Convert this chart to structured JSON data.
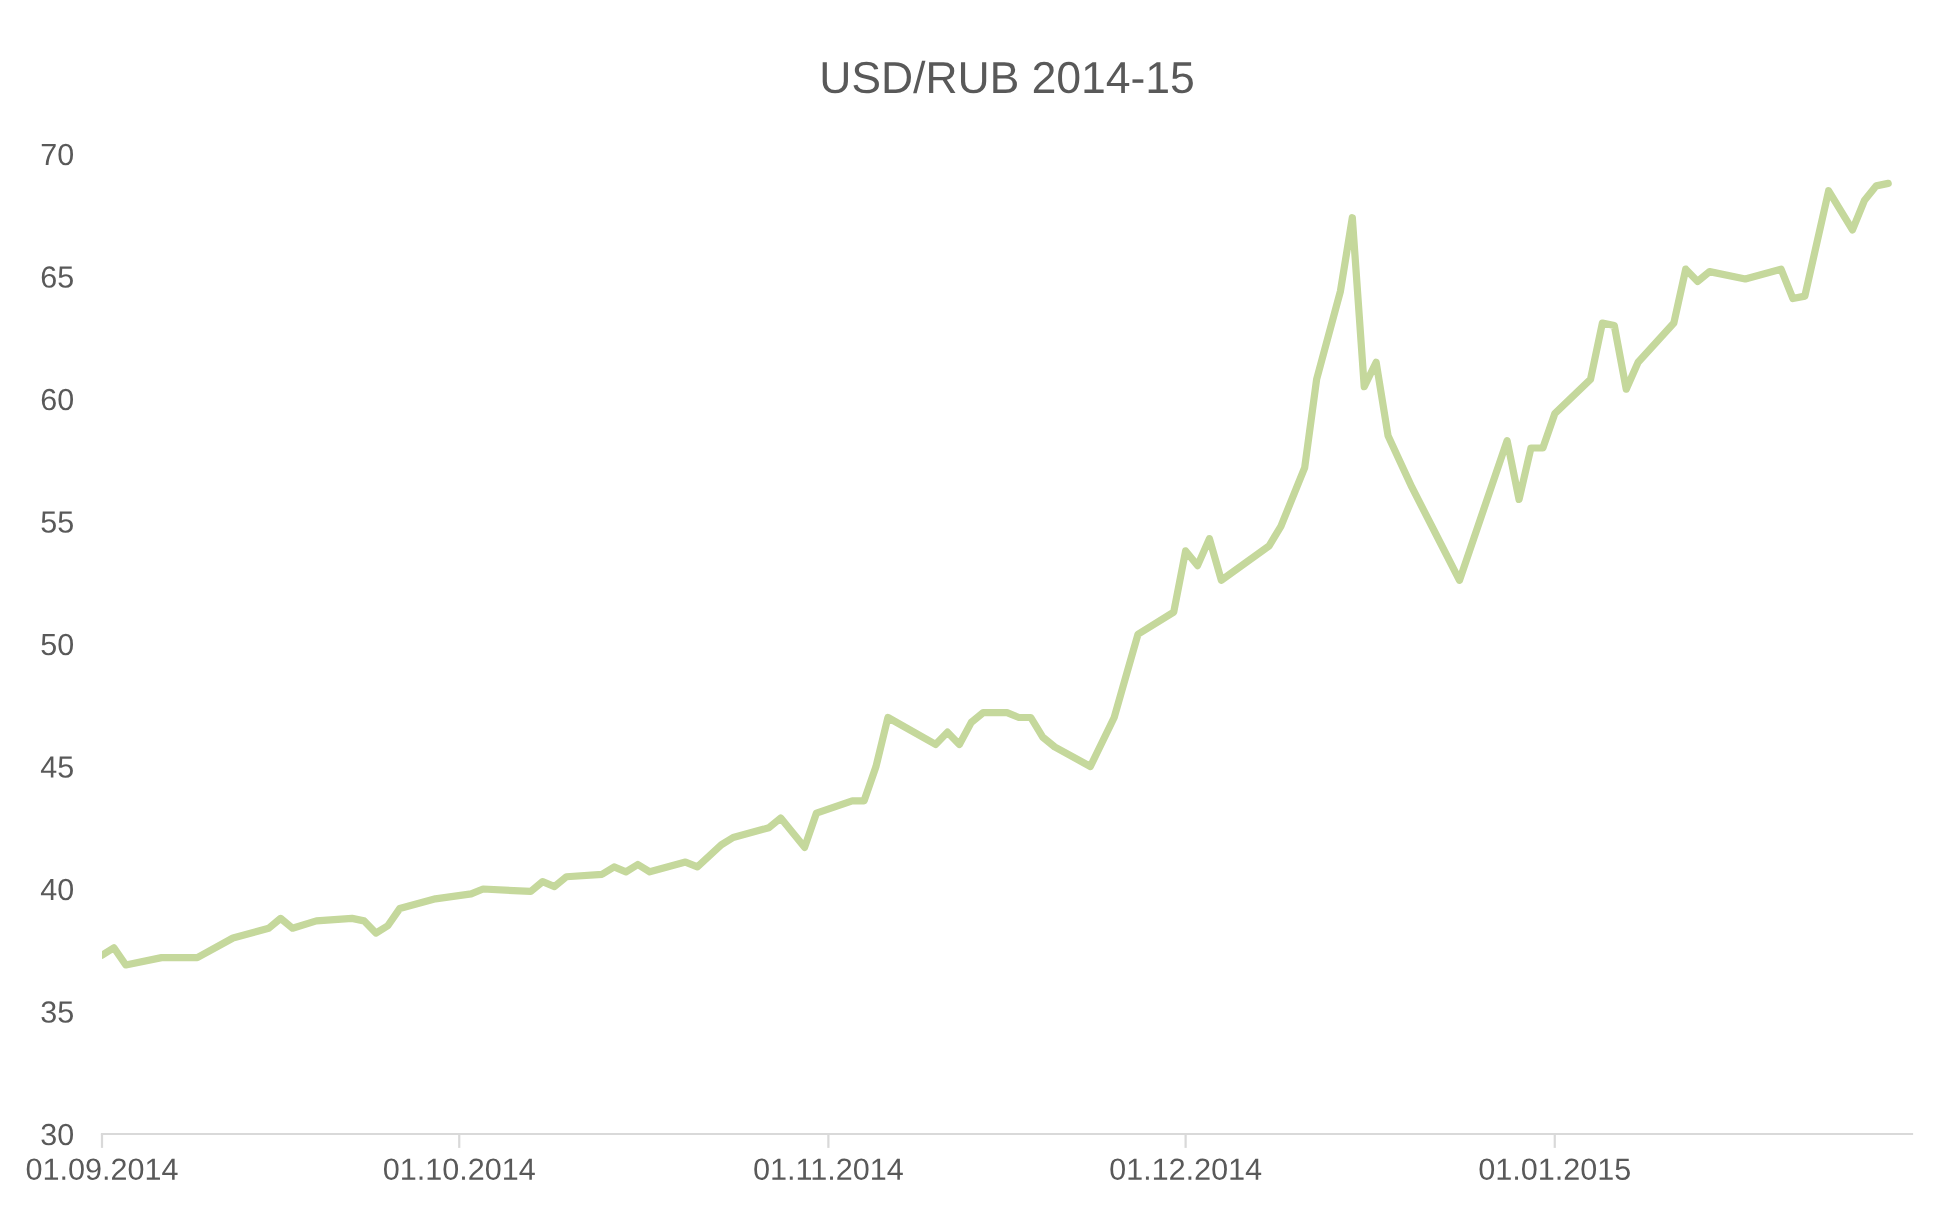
{
  "chart_data": {
    "type": "line",
    "title": "USD/RUB 2014-15",
    "x": [
      "2014-09-01",
      "2014-09-02",
      "2014-09-03",
      "2014-09-06",
      "2014-09-09",
      "2014-09-12",
      "2014-09-15",
      "2014-09-16",
      "2014-09-17",
      "2014-09-19",
      "2014-09-22",
      "2014-09-23",
      "2014-09-24",
      "2014-09-25",
      "2014-09-26",
      "2014-09-29",
      "2014-10-02",
      "2014-10-03",
      "2014-10-07",
      "2014-10-08",
      "2014-10-09",
      "2014-10-10",
      "2014-10-13",
      "2014-10-14",
      "2014-10-15",
      "2014-10-16",
      "2014-10-17",
      "2014-10-20",
      "2014-10-21",
      "2014-10-23",
      "2014-10-24",
      "2014-10-27",
      "2014-10-28",
      "2014-10-30",
      "2014-10-31",
      "2014-11-03",
      "2014-11-04",
      "2014-11-05",
      "2014-11-06",
      "2014-11-10",
      "2014-11-11",
      "2014-11-12",
      "2014-11-13",
      "2014-11-14",
      "2014-11-16",
      "2014-11-17",
      "2014-11-18",
      "2014-11-19",
      "2014-11-20",
      "2014-11-23",
      "2014-11-25",
      "2014-11-26",
      "2014-11-27",
      "2014-11-30",
      "2014-12-01",
      "2014-12-02",
      "2014-12-03",
      "2014-12-04",
      "2014-12-08",
      "2014-12-09",
      "2014-12-11",
      "2014-12-12",
      "2014-12-14",
      "2014-12-15",
      "2014-12-16",
      "2014-12-17",
      "2014-12-18",
      "2014-12-20",
      "2014-12-22",
      "2014-12-24",
      "2014-12-28",
      "2014-12-29",
      "2014-12-30",
      "2014-12-31",
      "2015-01-01",
      "2015-01-04",
      "2015-01-05",
      "2015-01-06",
      "2015-01-07",
      "2015-01-08",
      "2015-01-11",
      "2015-01-12",
      "2015-01-13",
      "2015-01-14",
      "2015-01-17",
      "2015-01-20",
      "2015-01-21",
      "2015-01-22",
      "2015-01-24",
      "2015-01-26",
      "2015-01-27",
      "2015-01-28",
      "2015-01-29"
    ],
    "series": [
      {
        "color": "#c5d89c",
        "values": [
          37.3,
          37.6,
          36.9,
          37.2,
          37.2,
          38.0,
          38.4,
          38.8,
          38.4,
          38.7,
          38.8,
          38.7,
          38.2,
          38.5,
          39.2,
          39.6,
          39.8,
          40.0,
          39.9,
          40.3,
          40.1,
          40.5,
          40.6,
          40.9,
          40.7,
          41.0,
          40.7,
          41.1,
          40.9,
          41.8,
          42.1,
          42.5,
          42.9,
          41.7,
          43.1,
          43.6,
          43.6,
          45.0,
          47.0,
          45.9,
          46.4,
          45.9,
          46.8,
          47.2,
          47.2,
          47.0,
          47.0,
          46.2,
          45.8,
          45.0,
          47.0,
          48.7,
          50.4,
          51.3,
          53.8,
          53.2,
          54.3,
          52.6,
          54.0,
          54.8,
          57.2,
          60.8,
          64.4,
          67.4,
          60.5,
          61.5,
          58.5,
          56.4,
          54.5,
          52.6,
          58.3,
          55.9,
          58.0,
          58.0,
          59.4,
          60.8,
          63.1,
          63.0,
          60.4,
          61.5,
          63.1,
          65.3,
          64.8,
          65.2,
          64.9,
          65.3,
          64.1,
          64.2,
          68.5,
          66.9,
          68.1,
          68.7,
          68.8
        ]
      }
    ],
    "xlim": [
      "2014-09-01",
      "2015-01-31"
    ],
    "xticks": [
      {
        "value": "2014-09-01",
        "label": "01.09.2014"
      },
      {
        "value": "2014-10-01",
        "label": "01.10.2014"
      },
      {
        "value": "2014-11-01",
        "label": "01.11.2014"
      },
      {
        "value": "2014-12-01",
        "label": "01.12.2014"
      },
      {
        "value": "2015-01-01",
        "label": "01.01.2015"
      }
    ],
    "ylim": [
      30,
      70
    ],
    "yticks": [
      30,
      35,
      40,
      45,
      50,
      55,
      60,
      65,
      70
    ],
    "grid": false,
    "marker": "none",
    "line_style": "solid"
  }
}
